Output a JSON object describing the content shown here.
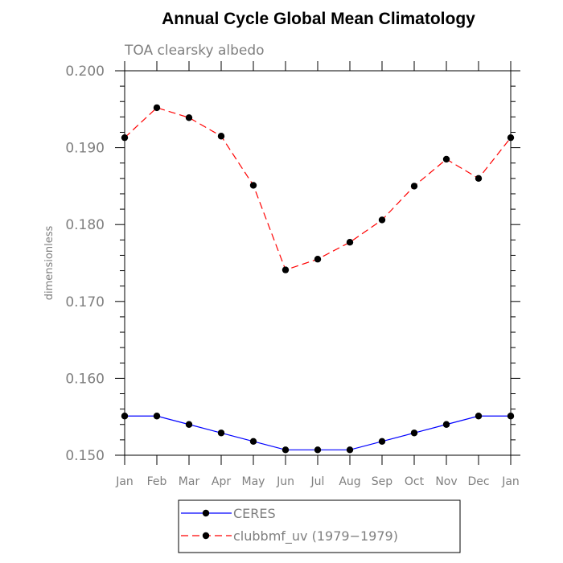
{
  "chart_data": {
    "type": "line",
    "title": "Annual Cycle Global Mean Climatology",
    "subtitle": "TOA clearsky albedo",
    "xlabel": "",
    "ylabel": "dimensionless",
    "categories": [
      "Jan",
      "Feb",
      "Mar",
      "Apr",
      "May",
      "Jun",
      "Jul",
      "Aug",
      "Sep",
      "Oct",
      "Nov",
      "Dec",
      "Jan"
    ],
    "ylim": [
      0.15,
      0.2
    ],
    "yticks": [
      "0.150",
      "0.160",
      "0.170",
      "0.180",
      "0.190",
      "0.200"
    ],
    "series": [
      {
        "name": "CERES",
        "color": "#0000ff",
        "linestyle": "solid",
        "values": [
          0.1551,
          0.1551,
          0.154,
          0.1529,
          0.1518,
          0.1507,
          0.1507,
          0.1507,
          0.1518,
          0.1529,
          0.154,
          0.1551,
          0.1551
        ]
      },
      {
        "name": "clubbmf_uv (1979−1979)",
        "color": "#ff0000",
        "linestyle": "dashed",
        "values": [
          0.1913,
          0.1952,
          0.1939,
          0.1915,
          0.1851,
          0.1741,
          0.1755,
          0.1777,
          0.1806,
          0.185,
          0.1885,
          0.186,
          0.1913
        ]
      }
    ],
    "legend_position": "bottom-center"
  }
}
